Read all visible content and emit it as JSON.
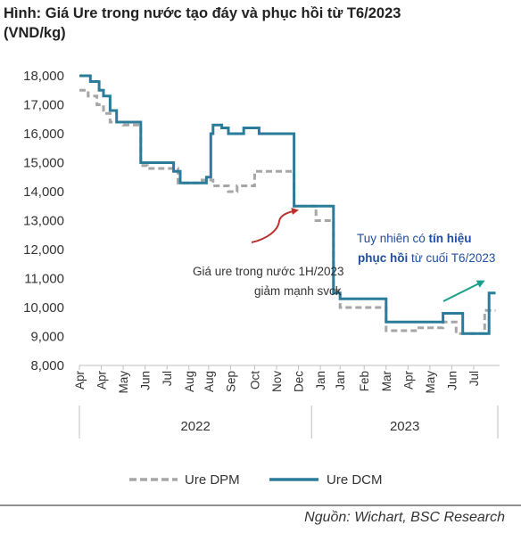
{
  "title_line1": "Hình: Giá Ure trong nước tạo đáy và phục hồi từ T6/2023",
  "title_line2": "(VND/kg)",
  "source": "Nguồn: Wichart, BSC Research",
  "colors": {
    "dpm": "#a6a6a6",
    "dcm": "#2b7c9a",
    "arrow_red": "#b8312f",
    "arrow_teal": "#1aa08a",
    "annotation_blue": "#1f4e9e"
  },
  "annotations": {
    "left_line1": "Giá ure trong nước 1H/2023",
    "left_line2": "giảm mạnh svck",
    "right_line1_a": "Tuy nhiên có ",
    "right_line1_b": "tín hiệu",
    "right_line2_a": "phục hồi",
    "right_line2_b": " từ cuối T6/2023"
  },
  "chart_data": {
    "type": "line",
    "ylim": [
      8000,
      18000
    ],
    "yticks": [
      "8,000",
      "9,000",
      "10,000",
      "11,000",
      "12,000",
      "13,000",
      "14,000",
      "15,000",
      "16,000",
      "17,000",
      "18,000"
    ],
    "x_tick_labels": [
      "Apr",
      "Apr",
      "May",
      "Jun",
      "Jul",
      "Aug",
      "Aug",
      "Sep",
      "Oct",
      "Nov",
      "Dec",
      "Jan",
      "Jan",
      "Feb",
      "Mar",
      "Apr",
      "May",
      "Jun",
      "Jul"
    ],
    "x_tick_positions": [
      0.0,
      1.0,
      2.0,
      3.0,
      4.0,
      5.0,
      5.9,
      6.9,
      8.0,
      9.0,
      10.0,
      11.0,
      11.9,
      13.0,
      14.0,
      15.0,
      16.0,
      17.0,
      18.0
    ],
    "year_groups": [
      {
        "label": "2022",
        "from": 0,
        "to": 10.6
      },
      {
        "label": "2023",
        "from": 10.6,
        "to": 19.1
      }
    ],
    "series": [
      {
        "name": "Ure DPM",
        "style": "dashed",
        "points": [
          [
            0,
            17500
          ],
          [
            0.4,
            17500
          ],
          [
            0.4,
            17300
          ],
          [
            0.8,
            17300
          ],
          [
            0.8,
            17000
          ],
          [
            1.1,
            17000
          ],
          [
            1.1,
            16700
          ],
          [
            1.4,
            16700
          ],
          [
            1.4,
            16400
          ],
          [
            2.0,
            16400
          ],
          [
            2.0,
            16300
          ],
          [
            2.8,
            16300
          ],
          [
            2.8,
            14900
          ],
          [
            3.1,
            14900
          ],
          [
            3.1,
            14800
          ],
          [
            4.5,
            14800
          ],
          [
            4.5,
            14300
          ],
          [
            5.6,
            14300
          ],
          [
            5.6,
            14400
          ],
          [
            6.1,
            14400
          ],
          [
            6.1,
            14200
          ],
          [
            6.8,
            14200
          ],
          [
            6.8,
            14000
          ],
          [
            7.2,
            14000
          ],
          [
            7.2,
            14200
          ],
          [
            8.0,
            14200
          ],
          [
            8.0,
            14700
          ],
          [
            9.8,
            14700
          ],
          [
            9.8,
            13500
          ],
          [
            10.8,
            13500
          ],
          [
            10.8,
            13000
          ],
          [
            11.6,
            13000
          ],
          [
            11.6,
            10600
          ],
          [
            11.9,
            10600
          ],
          [
            11.9,
            10000
          ],
          [
            14.0,
            10000
          ],
          [
            14.0,
            9200
          ],
          [
            15.5,
            9200
          ],
          [
            15.5,
            9300
          ],
          [
            16.6,
            9300
          ],
          [
            16.6,
            9500
          ],
          [
            17.2,
            9500
          ],
          [
            17.2,
            9100
          ],
          [
            18.5,
            9100
          ],
          [
            18.5,
            9900
          ],
          [
            19.0,
            9900
          ]
        ]
      },
      {
        "name": "Ure DCM",
        "style": "solid",
        "points": [
          [
            0,
            18000
          ],
          [
            0.5,
            18000
          ],
          [
            0.5,
            17800
          ],
          [
            0.9,
            17800
          ],
          [
            0.9,
            17500
          ],
          [
            1.1,
            17500
          ],
          [
            1.1,
            17300
          ],
          [
            1.4,
            17300
          ],
          [
            1.4,
            16800
          ],
          [
            1.7,
            16800
          ],
          [
            1.7,
            16400
          ],
          [
            2.8,
            16400
          ],
          [
            2.8,
            15000
          ],
          [
            4.3,
            15000
          ],
          [
            4.3,
            14700
          ],
          [
            4.6,
            14700
          ],
          [
            4.6,
            14300
          ],
          [
            5.8,
            14300
          ],
          [
            5.8,
            14500
          ],
          [
            6.0,
            14500
          ],
          [
            6.0,
            16000
          ],
          [
            6.1,
            16000
          ],
          [
            6.1,
            16300
          ],
          [
            6.5,
            16300
          ],
          [
            6.5,
            16200
          ],
          [
            6.8,
            16200
          ],
          [
            6.8,
            16000
          ],
          [
            7.5,
            16000
          ],
          [
            7.5,
            16200
          ],
          [
            8.2,
            16200
          ],
          [
            8.2,
            16000
          ],
          [
            9.8,
            16000
          ],
          [
            9.8,
            13500
          ],
          [
            11.6,
            13500
          ],
          [
            11.6,
            10500
          ],
          [
            11.9,
            10500
          ],
          [
            11.9,
            10300
          ],
          [
            14.0,
            10300
          ],
          [
            14.0,
            9500
          ],
          [
            16.6,
            9500
          ],
          [
            16.6,
            9800
          ],
          [
            17.5,
            9800
          ],
          [
            17.5,
            9100
          ],
          [
            18.7,
            9100
          ],
          [
            18.7,
            10500
          ],
          [
            19.0,
            10500
          ]
        ]
      }
    ]
  }
}
